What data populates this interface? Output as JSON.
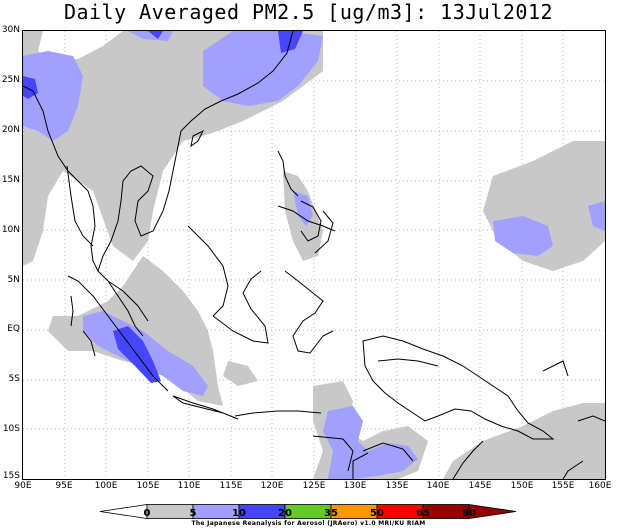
{
  "title": "Daily Averaged PM2.5 [ug/m3]: 13Jul2012",
  "map": {
    "lon_range": [
      90,
      160
    ],
    "lat_range": [
      -15,
      30
    ],
    "lat_ticks": [
      "30N",
      "25N",
      "20N",
      "15N",
      "10N",
      "5N",
      "EQ",
      "5S",
      "10S",
      "15S"
    ],
    "lon_ticks": [
      "90E",
      "95E",
      "100E",
      "105E",
      "110E",
      "115E",
      "120E",
      "125E",
      "130E",
      "135E",
      "140E",
      "145E",
      "150E",
      "155E",
      "160E"
    ]
  },
  "colorbar": {
    "levels": [
      "0",
      "5",
      "10",
      "20",
      "35",
      "50",
      "65",
      "80"
    ],
    "colors": [
      "#ffffff",
      "#c8c8c8",
      "#a0a0ff",
      "#4646ff",
      "#64c828",
      "#ff9600",
      "#ff0000",
      "#960000"
    ]
  },
  "credit": "The Japanese Reanalysis for Aerosol (JRAero) v1.0 MRI/KU RIAM"
}
